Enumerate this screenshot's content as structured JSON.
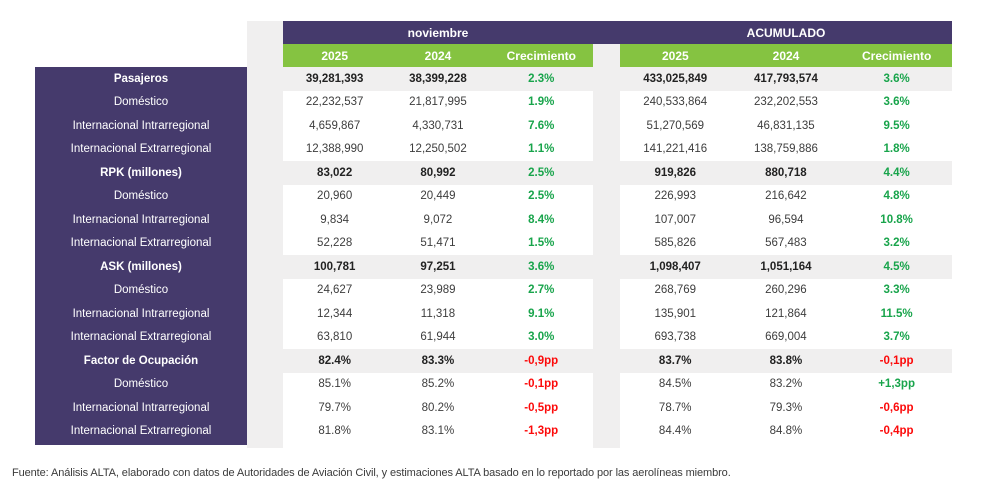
{
  "colors": {
    "purple": "#453a6c",
    "green_header_bg": "#85c341",
    "green_text": "#18a44b",
    "red_text": "#fc0a0a",
    "stripe_gray": "#f0efef",
    "data_text": "#3d3d3d"
  },
  "chart_data": {
    "type": "table",
    "title": "",
    "column_groups": [
      {
        "label": "noviembre",
        "columns": [
          "2025",
          "2024",
          "Crecimiento"
        ]
      },
      {
        "label": "ACUMULADO",
        "columns": [
          "2025",
          "2024",
          "Crecimiento"
        ]
      }
    ],
    "rows": [
      {
        "label": "Pasajeros",
        "bold": true,
        "nov": [
          "39,281,393",
          "38,399,228",
          "2.3%"
        ],
        "acc": [
          "433,025,849",
          "417,793,574",
          "3.6%"
        ]
      },
      {
        "label": "Doméstico",
        "bold": false,
        "nov": [
          "22,232,537",
          "21,817,995",
          "1.9%"
        ],
        "acc": [
          "240,533,864",
          "232,202,553",
          "3.6%"
        ]
      },
      {
        "label": "Internacional Intrarregional",
        "bold": false,
        "nov": [
          "4,659,867",
          "4,330,731",
          "7.6%"
        ],
        "acc": [
          "51,270,569",
          "46,831,135",
          "9.5%"
        ]
      },
      {
        "label": "Internacional Extrarregional",
        "bold": false,
        "nov": [
          "12,388,990",
          "12,250,502",
          "1.1%"
        ],
        "acc": [
          "141,221,416",
          "138,759,886",
          "1.8%"
        ]
      },
      {
        "label": "RPK (millones)",
        "bold": true,
        "nov": [
          "83,022",
          "80,992",
          "2.5%"
        ],
        "acc": [
          "919,826",
          "880,718",
          "4.4%"
        ]
      },
      {
        "label": "Doméstico",
        "bold": false,
        "nov": [
          "20,960",
          "20,449",
          "2.5%"
        ],
        "acc": [
          "226,993",
          "216,642",
          "4.8%"
        ]
      },
      {
        "label": "Internacional Intrarregional",
        "bold": false,
        "nov": [
          "9,834",
          "9,072",
          "8.4%"
        ],
        "acc": [
          "107,007",
          "96,594",
          "10.8%"
        ]
      },
      {
        "label": "Internacional Extrarregional",
        "bold": false,
        "nov": [
          "52,228",
          "51,471",
          "1.5%"
        ],
        "acc": [
          "585,826",
          "567,483",
          "3.2%"
        ]
      },
      {
        "label": "ASK (millones)",
        "bold": true,
        "nov": [
          "100,781",
          "97,251",
          "3.6%"
        ],
        "acc": [
          "1,098,407",
          "1,051,164",
          "4.5%"
        ]
      },
      {
        "label": "Doméstico",
        "bold": false,
        "nov": [
          "24,627",
          "23,989",
          "2.7%"
        ],
        "acc": [
          "268,769",
          "260,296",
          "3.3%"
        ]
      },
      {
        "label": "Internacional Intrarregional",
        "bold": false,
        "nov": [
          "12,344",
          "11,318",
          "9.1%"
        ],
        "acc": [
          "135,901",
          "121,864",
          "11.5%"
        ]
      },
      {
        "label": "Internacional Extrarregional",
        "bold": false,
        "nov": [
          "63,810",
          "61,944",
          "3.0%"
        ],
        "acc": [
          "693,738",
          "669,004",
          "3.7%"
        ]
      },
      {
        "label": "Factor de Ocupación",
        "bold": true,
        "nov": [
          "82.4%",
          "83.3%",
          "-0,9pp"
        ],
        "acc": [
          "83.7%",
          "83.8%",
          "-0,1pp"
        ]
      },
      {
        "label": "Doméstico",
        "bold": false,
        "nov": [
          "85.1%",
          "85.2%",
          "-0,1pp"
        ],
        "acc": [
          "84.5%",
          "83.2%",
          "+1,3pp"
        ]
      },
      {
        "label": "Internacional Intrarregional",
        "bold": false,
        "nov": [
          "79.7%",
          "80.2%",
          "-0,5pp"
        ],
        "acc": [
          "78.7%",
          "79.3%",
          "-0,6pp"
        ]
      },
      {
        "label": "Internacional Extrarregional",
        "bold": false,
        "nov": [
          "81.8%",
          "83.1%",
          "-1,3pp"
        ],
        "acc": [
          "84.4%",
          "84.8%",
          "-0,4pp"
        ]
      }
    ]
  },
  "footer": {
    "source": "Fuente: Análisis ALTA, elaborado con datos de Autoridades de Aviación Civil,  y estimaciones ALTA basado en lo reportado por las aerolíneas miembro."
  }
}
